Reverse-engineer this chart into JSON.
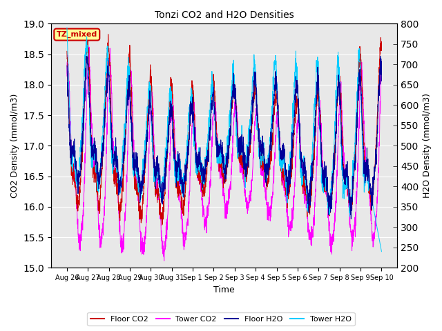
{
  "title": "Tonzi CO2 and H2O Densities",
  "xlabel": "Time",
  "ylabel_left": "CO2 Density (mmol/m3)",
  "ylabel_right": "H2O Density (mmol/m3)",
  "ylim_left": [
    15.0,
    19.0
  ],
  "ylim_right": [
    200,
    800
  ],
  "yticks_left": [
    15.0,
    15.5,
    16.0,
    16.5,
    17.0,
    17.5,
    18.0,
    18.5,
    19.0
  ],
  "yticks_right": [
    200,
    250,
    300,
    350,
    400,
    450,
    500,
    550,
    600,
    650,
    700,
    750,
    800
  ],
  "xtick_labels": [
    "Aug 26",
    "Aug 27",
    "Aug 28",
    "Aug 29",
    "Aug 30",
    "Aug 31",
    "Sep 1",
    "Sep 2",
    "Sep 3",
    "Sep 4",
    "Sep 5",
    "Sep 6",
    "Sep 7",
    "Sep 8",
    "Sep 9",
    "Sep 10"
  ],
  "annotation_text": "TZ_mixed",
  "annotation_color": "#cc0000",
  "annotation_bg": "#ffff99",
  "bg_color": "#e8e8e8",
  "colors": {
    "floor_co2": "#cc0000",
    "tower_co2": "#ff00ff",
    "floor_h2o": "#000099",
    "tower_h2o": "#00ccff"
  },
  "legend_labels": [
    "Floor CO2",
    "Tower CO2",
    "Floor H2O",
    "Tower H2O"
  ],
  "n_points": 2160,
  "seed": 42
}
